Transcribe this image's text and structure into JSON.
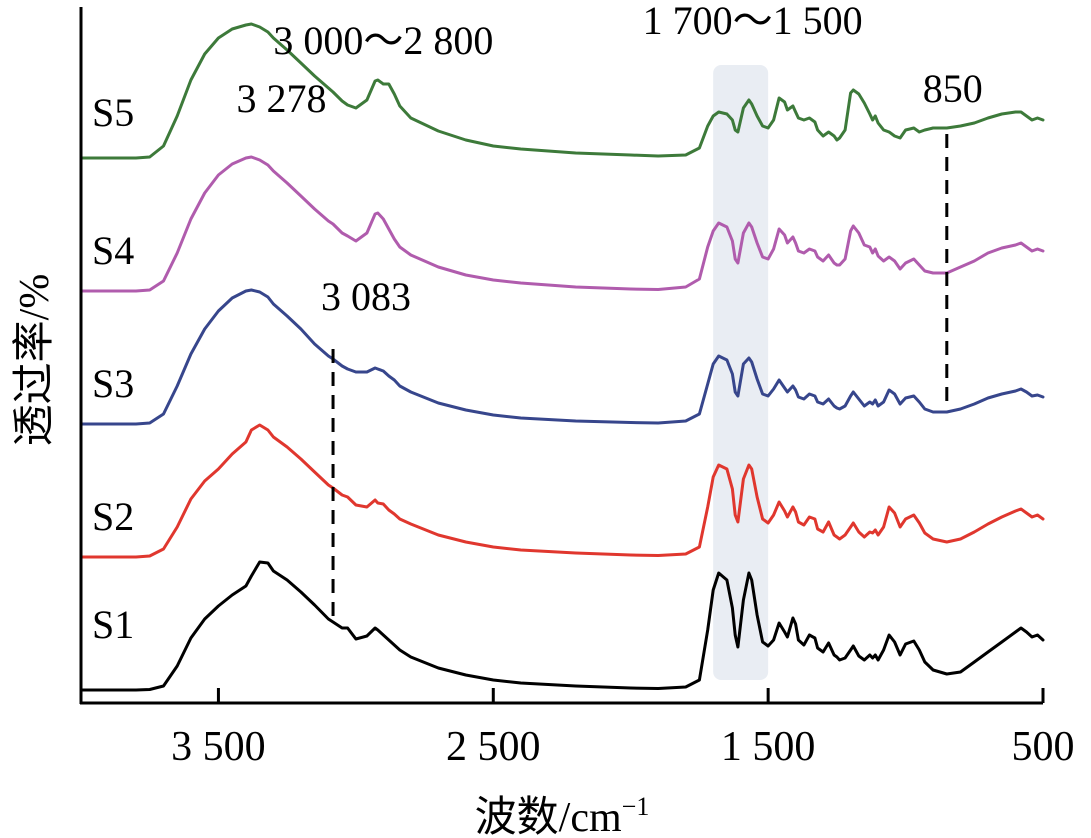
{
  "chart_data": {
    "type": "line",
    "title": "",
    "xlabel": "波数/cm",
    "xlabel_sup": "−1",
    "ylabel": "透过率/%",
    "xlim": [
      4000,
      500
    ],
    "x_reversed": true,
    "xticks": [
      3500,
      2500,
      1500,
      500
    ],
    "xtick_labels": [
      "3 500",
      "2 500",
      "1 500",
      "500"
    ],
    "grid": false,
    "highlight_band": {
      "from": 1700,
      "to": 1500,
      "label": "1 700～1 500",
      "color": "#e9edf3"
    },
    "annotations": [
      {
        "text": "3 278",
        "x": 3278,
        "series": "S5"
      },
      {
        "text": "3 000～2 800",
        "x": 2900,
        "series": "S5"
      },
      {
        "text": "850",
        "x": 850,
        "series": "S3-S5",
        "dashed_line": true
      },
      {
        "text": "3 083",
        "x": 3083,
        "series": "S1-S3",
        "dashed_line": true
      }
    ],
    "series": [
      {
        "name": "S1",
        "color": "#000000",
        "x": [
          4000,
          3850,
          3800,
          3750,
          3700,
          3650,
          3600,
          3550,
          3500,
          3450,
          3400,
          3380,
          3350,
          3320,
          3300,
          3250,
          3200,
          3150,
          3100,
          3083,
          3050,
          3030,
          3000,
          2960,
          2930,
          2920,
          2900,
          2880,
          2860,
          2840,
          2800,
          2700,
          2600,
          2500,
          2400,
          2200,
          2000,
          1900,
          1800,
          1750,
          1720,
          1700,
          1680,
          1650,
          1630,
          1620,
          1610,
          1590,
          1570,
          1560,
          1540,
          1520,
          1500,
          1480,
          1460,
          1440,
          1430,
          1410,
          1400,
          1390,
          1370,
          1350,
          1330,
          1320,
          1300,
          1280,
          1260,
          1250,
          1240,
          1220,
          1200,
          1190,
          1170,
          1150,
          1130,
          1120,
          1110,
          1100,
          1080,
          1060,
          1040,
          1020,
          1000,
          970,
          950,
          930,
          900,
          850,
          800,
          750,
          700,
          650,
          600,
          580,
          560,
          540,
          520,
          500
        ],
        "y": [
          0,
          0,
          0,
          0.5,
          4,
          24,
          52,
          71,
          84,
          95,
          104,
          114,
          128,
          127,
          119,
          110,
          98,
          85,
          71,
          68,
          62,
          62,
          51,
          54,
          62,
          60,
          55,
          50,
          45,
          40,
          33,
          22,
          15,
          10,
          7,
          4,
          2,
          1.5,
          3,
          10,
          60,
          100,
          117,
          110,
          82,
          55,
          43,
          90,
          117,
          110,
          75,
          48,
          44,
          50,
          67,
          58,
          53,
          72,
          66,
          50,
          45,
          55,
          52,
          42,
          38,
          47,
          35,
          33,
          30,
          32,
          40,
          44,
          34,
          30,
          35,
          32,
          35,
          30,
          40,
          55,
          48,
          35,
          46,
          49,
          40,
          28,
          20,
          16,
          18,
          28,
          38,
          48,
          58,
          62,
          58,
          53,
          55,
          50
        ],
        "offset": 0,
        "label_y": 50
      },
      {
        "name": "S2",
        "color": "#e0372e",
        "x": [
          4000,
          3850,
          3800,
          3750,
          3700,
          3650,
          3600,
          3550,
          3500,
          3450,
          3400,
          3380,
          3350,
          3320,
          3300,
          3250,
          3200,
          3150,
          3100,
          3083,
          3050,
          3030,
          3000,
          2960,
          2930,
          2920,
          2900,
          2880,
          2860,
          2840,
          2800,
          2700,
          2600,
          2500,
          2400,
          2200,
          2000,
          1900,
          1800,
          1750,
          1720,
          1700,
          1680,
          1650,
          1630,
          1620,
          1610,
          1590,
          1570,
          1560,
          1540,
          1520,
          1500,
          1480,
          1460,
          1440,
          1430,
          1410,
          1400,
          1390,
          1370,
          1350,
          1330,
          1320,
          1300,
          1280,
          1260,
          1250,
          1240,
          1220,
          1200,
          1190,
          1170,
          1150,
          1130,
          1120,
          1110,
          1100,
          1080,
          1060,
          1040,
          1020,
          1000,
          970,
          950,
          930,
          900,
          850,
          800,
          750,
          700,
          650,
          600,
          580,
          560,
          540,
          520,
          500
        ],
        "y": [
          0,
          0,
          0,
          1,
          8,
          30,
          58,
          76,
          88,
          103,
          115,
          127,
          132,
          127,
          120,
          110,
          98,
          85,
          72,
          69,
          62,
          60,
          52,
          50,
          57,
          54,
          53,
          47,
          43,
          38,
          33,
          22,
          15,
          10,
          7,
          4,
          2,
          1.5,
          3,
          10,
          50,
          80,
          92,
          88,
          68,
          42,
          35,
          78,
          92,
          88,
          60,
          38,
          34,
          42,
          55,
          46,
          40,
          50,
          45,
          35,
          32,
          40,
          38,
          28,
          25,
          35,
          22,
          20,
          18,
          22,
          30,
          34,
          25,
          20,
          25,
          24,
          27,
          22,
          30,
          50,
          44,
          30,
          38,
          42,
          34,
          24,
          18,
          15,
          18,
          25,
          33,
          40,
          46,
          48,
          44,
          40,
          42,
          38
        ],
        "offset": 133,
        "label_y": 25
      },
      {
        "name": "S3",
        "color": "#37468c",
        "x": [
          4000,
          3850,
          3800,
          3750,
          3700,
          3650,
          3600,
          3550,
          3500,
          3450,
          3400,
          3380,
          3350,
          3320,
          3300,
          3250,
          3200,
          3150,
          3100,
          3083,
          3050,
          3030,
          3000,
          2960,
          2930,
          2920,
          2900,
          2880,
          2860,
          2840,
          2800,
          2700,
          2600,
          2500,
          2400,
          2200,
          2000,
          1900,
          1800,
          1750,
          1720,
          1700,
          1680,
          1650,
          1630,
          1620,
          1610,
          1590,
          1570,
          1560,
          1540,
          1520,
          1500,
          1480,
          1460,
          1440,
          1430,
          1410,
          1400,
          1390,
          1370,
          1350,
          1330,
          1320,
          1300,
          1280,
          1260,
          1250,
          1240,
          1220,
          1200,
          1190,
          1170,
          1150,
          1130,
          1120,
          1110,
          1100,
          1080,
          1060,
          1040,
          1020,
          1000,
          970,
          950,
          930,
          900,
          850,
          800,
          750,
          700,
          650,
          600,
          580,
          560,
          540,
          520,
          500
        ],
        "y": [
          0,
          0,
          0,
          1,
          10,
          38,
          70,
          95,
          113,
          126,
          133,
          134,
          132,
          127,
          120,
          108,
          95,
          80,
          68,
          65,
          58,
          55,
          52,
          52,
          56,
          55,
          53,
          48,
          44,
          38,
          32,
          21,
          14,
          9,
          6,
          3,
          1.5,
          1,
          3,
          10,
          40,
          60,
          68,
          64,
          50,
          32,
          28,
          60,
          66,
          62,
          45,
          30,
          28,
          35,
          44,
          36,
          32,
          38,
          34,
          27,
          25,
          30,
          28,
          22,
          20,
          25,
          18,
          16,
          15,
          18,
          28,
          32,
          25,
          18,
          22,
          20,
          24,
          18,
          22,
          34,
          30,
          20,
          26,
          28,
          22,
          15,
          12,
          12,
          15,
          20,
          26,
          30,
          33,
          35,
          32,
          28,
          29,
          27
        ],
        "offset": 266,
        "label_y": 25
      },
      {
        "name": "S4",
        "color": "#b05cad",
        "x": [
          4000,
          3850,
          3800,
          3750,
          3700,
          3650,
          3600,
          3550,
          3500,
          3450,
          3400,
          3380,
          3350,
          3320,
          3300,
          3250,
          3200,
          3150,
          3100,
          3083,
          3050,
          3030,
          3000,
          2960,
          2930,
          2920,
          2900,
          2880,
          2860,
          2840,
          2800,
          2700,
          2600,
          2500,
          2400,
          2200,
          2000,
          1900,
          1800,
          1750,
          1720,
          1700,
          1680,
          1650,
          1630,
          1620,
          1610,
          1590,
          1570,
          1560,
          1540,
          1520,
          1500,
          1480,
          1460,
          1440,
          1430,
          1410,
          1400,
          1390,
          1370,
          1350,
          1330,
          1320,
          1300,
          1280,
          1260,
          1250,
          1240,
          1220,
          1200,
          1190,
          1170,
          1150,
          1130,
          1120,
          1110,
          1100,
          1080,
          1060,
          1040,
          1020,
          1000,
          970,
          950,
          930,
          900,
          850,
          800,
          750,
          700,
          650,
          600,
          580,
          560,
          540,
          520,
          500
        ],
        "y": [
          0,
          0,
          0,
          1,
          10,
          38,
          72,
          98,
          116,
          127,
          133,
          134,
          131,
          126,
          120,
          108,
          95,
          82,
          70,
          67,
          58,
          55,
          50,
          58,
          77,
          78,
          72,
          62,
          52,
          44,
          36,
          24,
          16,
          11,
          8,
          4,
          2,
          1.5,
          4,
          12,
          44,
          60,
          68,
          64,
          50,
          32,
          28,
          58,
          68,
          64,
          48,
          34,
          32,
          42,
          62,
          56,
          48,
          54,
          48,
          40,
          38,
          42,
          40,
          34,
          30,
          36,
          28,
          26,
          26,
          32,
          60,
          65,
          58,
          46,
          44,
          38,
          42,
          35,
          30,
          34,
          30,
          22,
          28,
          32,
          26,
          20,
          18,
          18,
          24,
          30,
          38,
          43,
          46,
          48,
          44,
          40,
          42,
          40
        ],
        "offset": 399,
        "label_y": 25
      },
      {
        "name": "S5",
        "color": "#3d7a3a",
        "x": [
          4000,
          3850,
          3800,
          3750,
          3700,
          3650,
          3600,
          3550,
          3500,
          3450,
          3400,
          3380,
          3350,
          3320,
          3300,
          3250,
          3200,
          3150,
          3100,
          3083,
          3050,
          3030,
          3000,
          2960,
          2930,
          2920,
          2900,
          2880,
          2860,
          2840,
          2800,
          2700,
          2600,
          2500,
          2400,
          2200,
          2000,
          1900,
          1800,
          1750,
          1720,
          1700,
          1680,
          1650,
          1630,
          1620,
          1610,
          1590,
          1570,
          1560,
          1540,
          1520,
          1500,
          1480,
          1460,
          1440,
          1430,
          1410,
          1400,
          1390,
          1370,
          1350,
          1330,
          1320,
          1300,
          1280,
          1260,
          1250,
          1240,
          1220,
          1200,
          1190,
          1170,
          1150,
          1130,
          1120,
          1110,
          1100,
          1080,
          1060,
          1040,
          1020,
          1000,
          970,
          950,
          930,
          900,
          850,
          800,
          750,
          700,
          650,
          600,
          580,
          560,
          540,
          520,
          500
        ],
        "y": [
          0,
          0,
          0,
          1,
          12,
          42,
          78,
          104,
          120,
          129,
          133,
          134,
          131,
          126,
          120,
          108,
          95,
          82,
          70,
          66,
          57,
          53,
          50,
          58,
          77,
          78,
          74,
          74,
          64,
          52,
          40,
          27,
          18,
          12,
          9,
          5,
          3,
          2,
          3,
          10,
          32,
          42,
          46,
          44,
          38,
          28,
          26,
          50,
          58,
          54,
          42,
          32,
          30,
          38,
          60,
          56,
          48,
          52,
          46,
          40,
          38,
          40,
          36,
          28,
          22,
          26,
          22,
          18,
          20,
          28,
          65,
          68,
          64,
          55,
          44,
          38,
          42,
          35,
          28,
          26,
          22,
          20,
          28,
          30,
          26,
          28,
          30,
          30,
          32,
          35,
          40,
          44,
          46,
          46,
          42,
          38,
          40,
          38
        ],
        "offset": 532,
        "label_y": 30
      }
    ]
  }
}
